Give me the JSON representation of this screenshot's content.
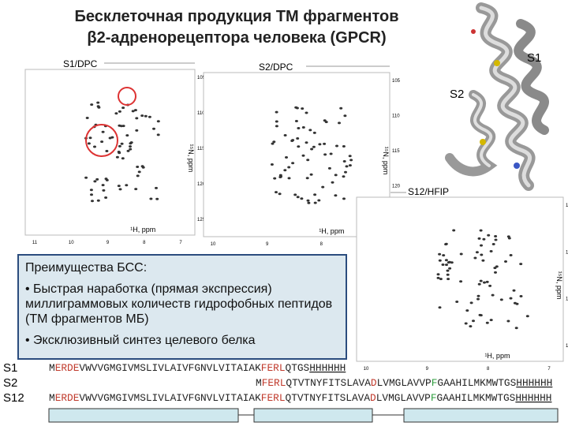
{
  "title": [
    "Бесклеточная продукция ТМ фрагментов",
    "β2-адренорецептора человека (GPCR)"
  ],
  "spectra": [
    {
      "label": "S1/DPC",
      "x_axis": "¹H, ppm",
      "y_axis": "¹⁵N, ppm",
      "xticks": [
        "11",
        "10",
        "9",
        "8",
        "7"
      ],
      "yticks": [
        "105",
        "110",
        "115",
        "120",
        "125"
      ]
    },
    {
      "label": "S2/DPC",
      "x_axis": "¹H, ppm",
      "y_axis": "¹⁵N, ppm",
      "xticks": [
        "10",
        "9",
        "8",
        "7"
      ],
      "yticks": [
        "105",
        "110",
        "115",
        "120",
        "125"
      ]
    },
    {
      "label": "S12/HFIP",
      "x_axis": "¹H, ppm",
      "y_axis": "¹⁵N, ppm",
      "xticks": [
        "10",
        "9",
        "8",
        "7"
      ],
      "yticks": [
        "110",
        "115",
        "120",
        "125"
      ]
    }
  ],
  "structure_labels": [
    "S1",
    "S2"
  ],
  "advantages": {
    "heading": "Преимущества БСС:",
    "items": [
      "• Быстрая наработка (прямая экспрессия) миллиграммовых количеств гидрофобных пептидов (ТМ фрагментов МБ)",
      "• Эксклюзивный синтез целевого белка"
    ]
  },
  "sequences": [
    {
      "name": "S1",
      "segments": [
        {
          "text": "M",
          "color": "#222"
        },
        {
          "text": "ERDE",
          "color": "#c0392b"
        },
        {
          "text": "VWVVGMGIVMSLIVLAIVFGNVLVITAIAK",
          "color": "#222"
        },
        {
          "text": "FERL",
          "color": "#c0392b"
        },
        {
          "text": "QTGS",
          "color": "#222"
        },
        {
          "text": "HHHHHH",
          "color": "#222",
          "underline": true
        }
      ]
    },
    {
      "name": "S2",
      "segments": [
        {
          "text": "M",
          "color": "#222"
        },
        {
          "text": "FERL",
          "color": "#c0392b"
        },
        {
          "text": "QTVTNYFITSLAVA",
          "color": "#222"
        },
        {
          "text": "D",
          "color": "#c0392b"
        },
        {
          "text": "LVMGLAVVP",
          "color": "#222"
        },
        {
          "text": "F",
          "color": "#2e9e3e"
        },
        {
          "text": "GAAHILMKMWTGS",
          "color": "#222"
        },
        {
          "text": "HHHHHH",
          "color": "#222",
          "underline": true
        }
      ]
    },
    {
      "name": "S12",
      "segments": [
        {
          "text": "M",
          "color": "#222"
        },
        {
          "text": "ERDE",
          "color": "#c0392b"
        },
        {
          "text": "VWVVGMGIVMSLIVLAIVFGNVLVITAIAK",
          "color": "#222"
        },
        {
          "text": "FERL",
          "color": "#c0392b"
        },
        {
          "text": "QTVTNYFITSLAVA",
          "color": "#222"
        },
        {
          "text": "D",
          "color": "#c0392b"
        },
        {
          "text": "LVMGLAVVP",
          "color": "#222"
        },
        {
          "text": "F",
          "color": "#2e9e3e"
        },
        {
          "text": "GAAHILMKMWTGS",
          "color": "#222"
        },
        {
          "text": "HHHHHH",
          "color": "#222",
          "underline": true
        }
      ]
    }
  ]
}
